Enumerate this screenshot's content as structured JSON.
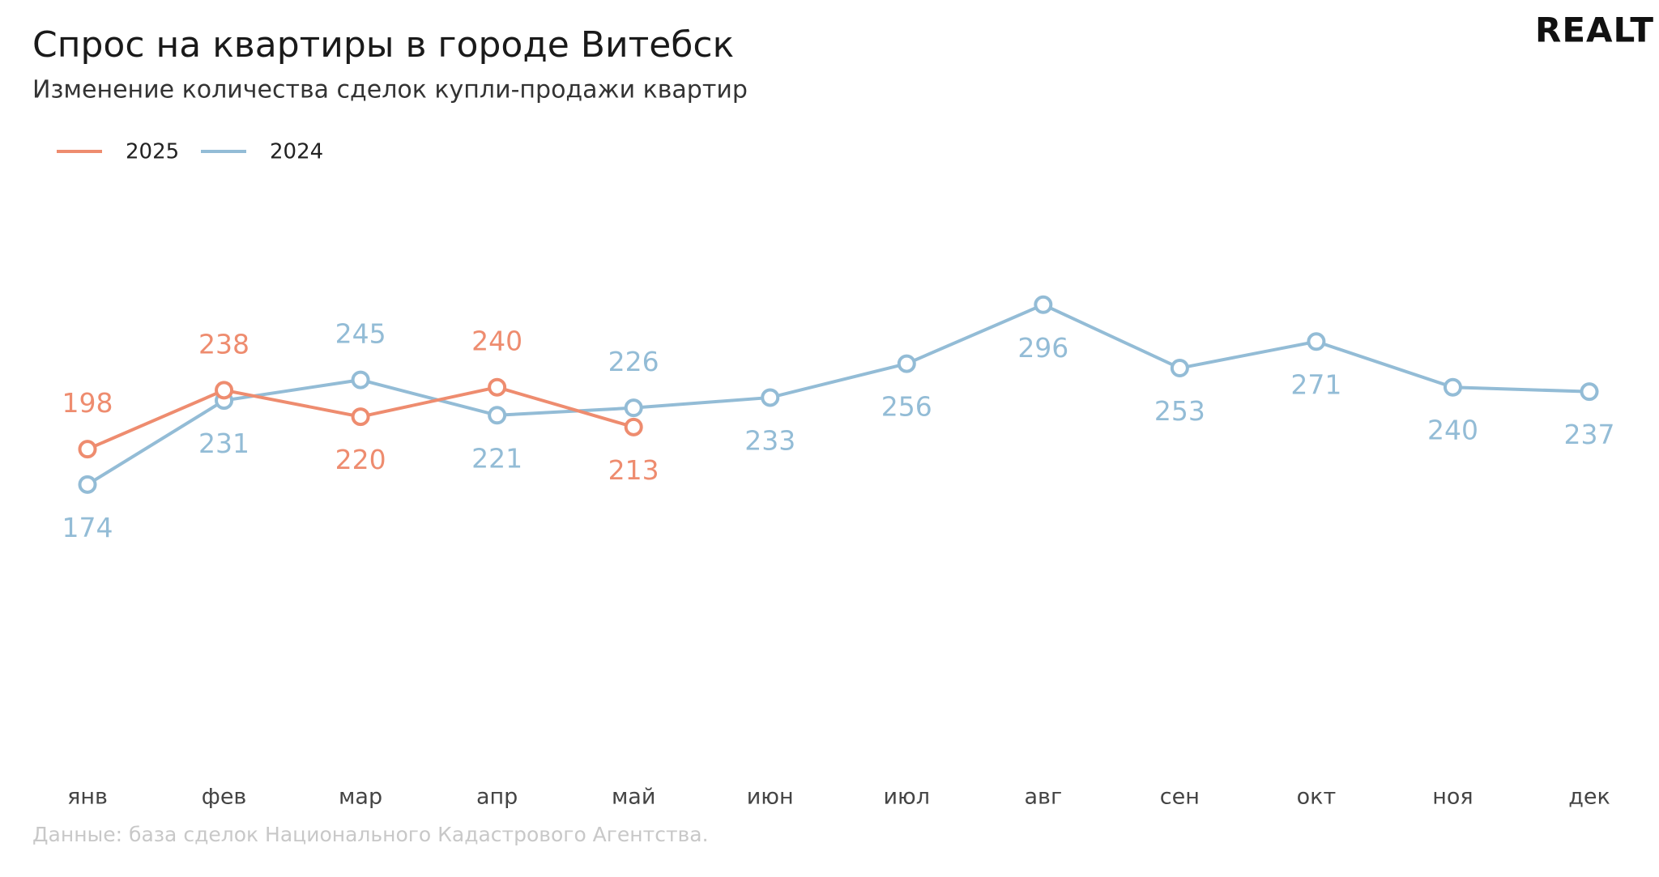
{
  "logo": "REALT",
  "chart_data": {
    "type": "line",
    "title": "Спрос на квартиры в городе Витебск",
    "subtitle": "Изменение количества сделок купли-продажи квартир",
    "source": "Данные: база сделок Национального Кадастрового Агентства.",
    "categories": [
      "янв",
      "фев",
      "мар",
      "апр",
      "май",
      "июн",
      "июл",
      "авг",
      "сен",
      "окт",
      "ноя",
      "дек"
    ],
    "series": [
      {
        "name": "2025",
        "color": "#ee8c6f",
        "values": [
          198,
          238,
          220,
          240,
          213,
          null,
          null,
          null,
          null,
          null,
          null,
          null
        ]
      },
      {
        "name": "2024",
        "color": "#93bcd6",
        "values": [
          174,
          231,
          245,
          221,
          226,
          233,
          256,
          296,
          253,
          271,
          240,
          237
        ]
      }
    ],
    "ylim": [
      0,
      350
    ],
    "grid": false,
    "legend": "top-left"
  }
}
